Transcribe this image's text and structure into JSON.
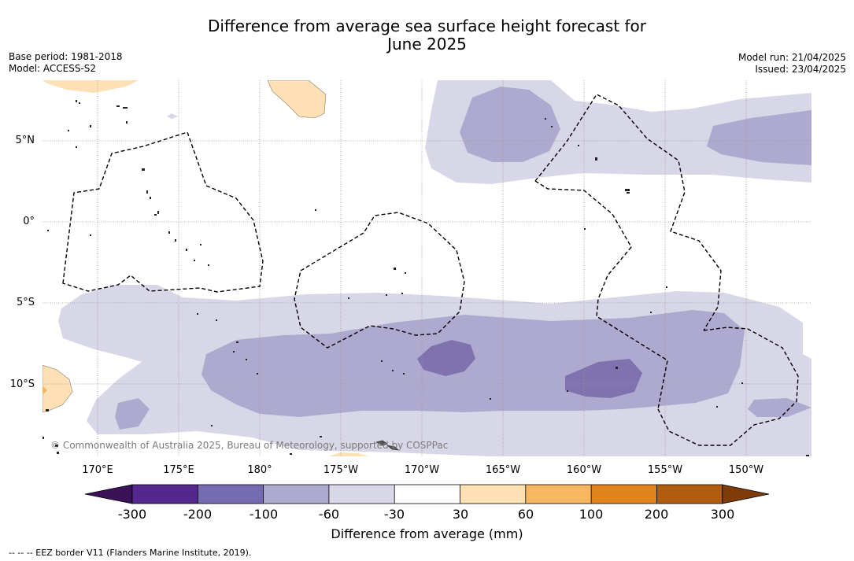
{
  "title_line1": "Difference from average sea surface height forecast for",
  "title_line2": "June 2025",
  "base_period": "Base period: 1981-2018",
  "model": "Model: ACCESS-S2",
  "model_run": "Model run: 21/04/2025",
  "issued": "Issued: 23/04/2025",
  "lat_labels": [
    "5°N",
    "0°",
    "5°S",
    "10°S"
  ],
  "lon_labels": [
    "170°E",
    "175°E",
    "180°",
    "175°W",
    "170°W",
    "165°W",
    "160°W",
    "155°W",
    "150°W"
  ],
  "copyright": "© Commonwealth of Australia 2025, Bureau of Meteorology, supported by COSPPac",
  "colorbar": {
    "ticks": [
      "-300",
      "-200",
      "-100",
      "-60",
      "-30",
      "30",
      "60",
      "100",
      "200",
      "300"
    ],
    "colors": [
      "#3b1258",
      "#54278f",
      "#756bb1",
      "#aea9cf",
      "#d8d7e8",
      "#ffffff",
      "#fde0b4",
      "#f8b660",
      "#e0831c",
      "#b15d0f",
      "#7f3b08"
    ],
    "label": "Difference from average (mm)"
  },
  "footnote": "--  --  -- EEZ border V11 (Flanders Marine Institute, 2019)."
}
